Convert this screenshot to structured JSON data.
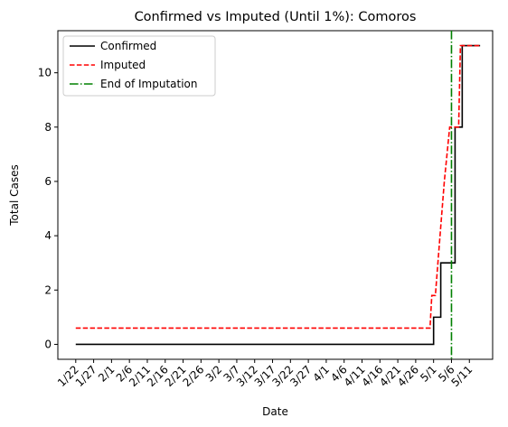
{
  "chart_data": {
    "type": "line",
    "title": "Confirmed vs Imputed (Until 1%): Comoros",
    "xlabel": "Date",
    "ylabel": "Total Cases",
    "ylim": [
      -0.55,
      11.55
    ],
    "yticks": [
      0,
      2,
      4,
      6,
      8,
      10
    ],
    "x_categories": [
      "1/22",
      "1/27",
      "2/1",
      "2/6",
      "2/11",
      "2/16",
      "2/21",
      "2/26",
      "3/2",
      "3/7",
      "3/12",
      "3/17",
      "3/22",
      "3/27",
      "4/1",
      "4/6",
      "4/11",
      "4/16",
      "4/21",
      "4/26",
      "5/1",
      "5/6",
      "5/11"
    ],
    "x_day_range": [
      -5,
      116.5
    ],
    "grid": false,
    "legend_position": "top-left",
    "series": [
      {
        "name": "Confirmed",
        "color": "#000000",
        "style": "solid",
        "step": true,
        "points": [
          [
            0,
            0
          ],
          [
            99,
            0
          ],
          [
            100,
            1
          ],
          [
            101,
            1
          ],
          [
            102,
            3
          ],
          [
            105,
            3
          ],
          [
            106,
            8
          ],
          [
            107,
            8
          ],
          [
            108,
            11
          ],
          [
            113,
            11
          ]
        ]
      },
      {
        "name": "Imputed",
        "color": "#ff0000",
        "style": "dashed",
        "step": false,
        "points": [
          [
            0,
            0.6
          ],
          [
            99,
            0.6
          ],
          [
            99.5,
            1.8
          ],
          [
            100.5,
            1.8
          ],
          [
            101.5,
            3.5
          ],
          [
            103,
            6
          ],
          [
            104.5,
            8
          ],
          [
            107,
            8
          ],
          [
            107.5,
            11
          ],
          [
            113,
            11
          ]
        ]
      },
      {
        "name": "End of Imputation",
        "color": "#008000",
        "style": "dashdot",
        "vertical_x": 105
      }
    ]
  }
}
